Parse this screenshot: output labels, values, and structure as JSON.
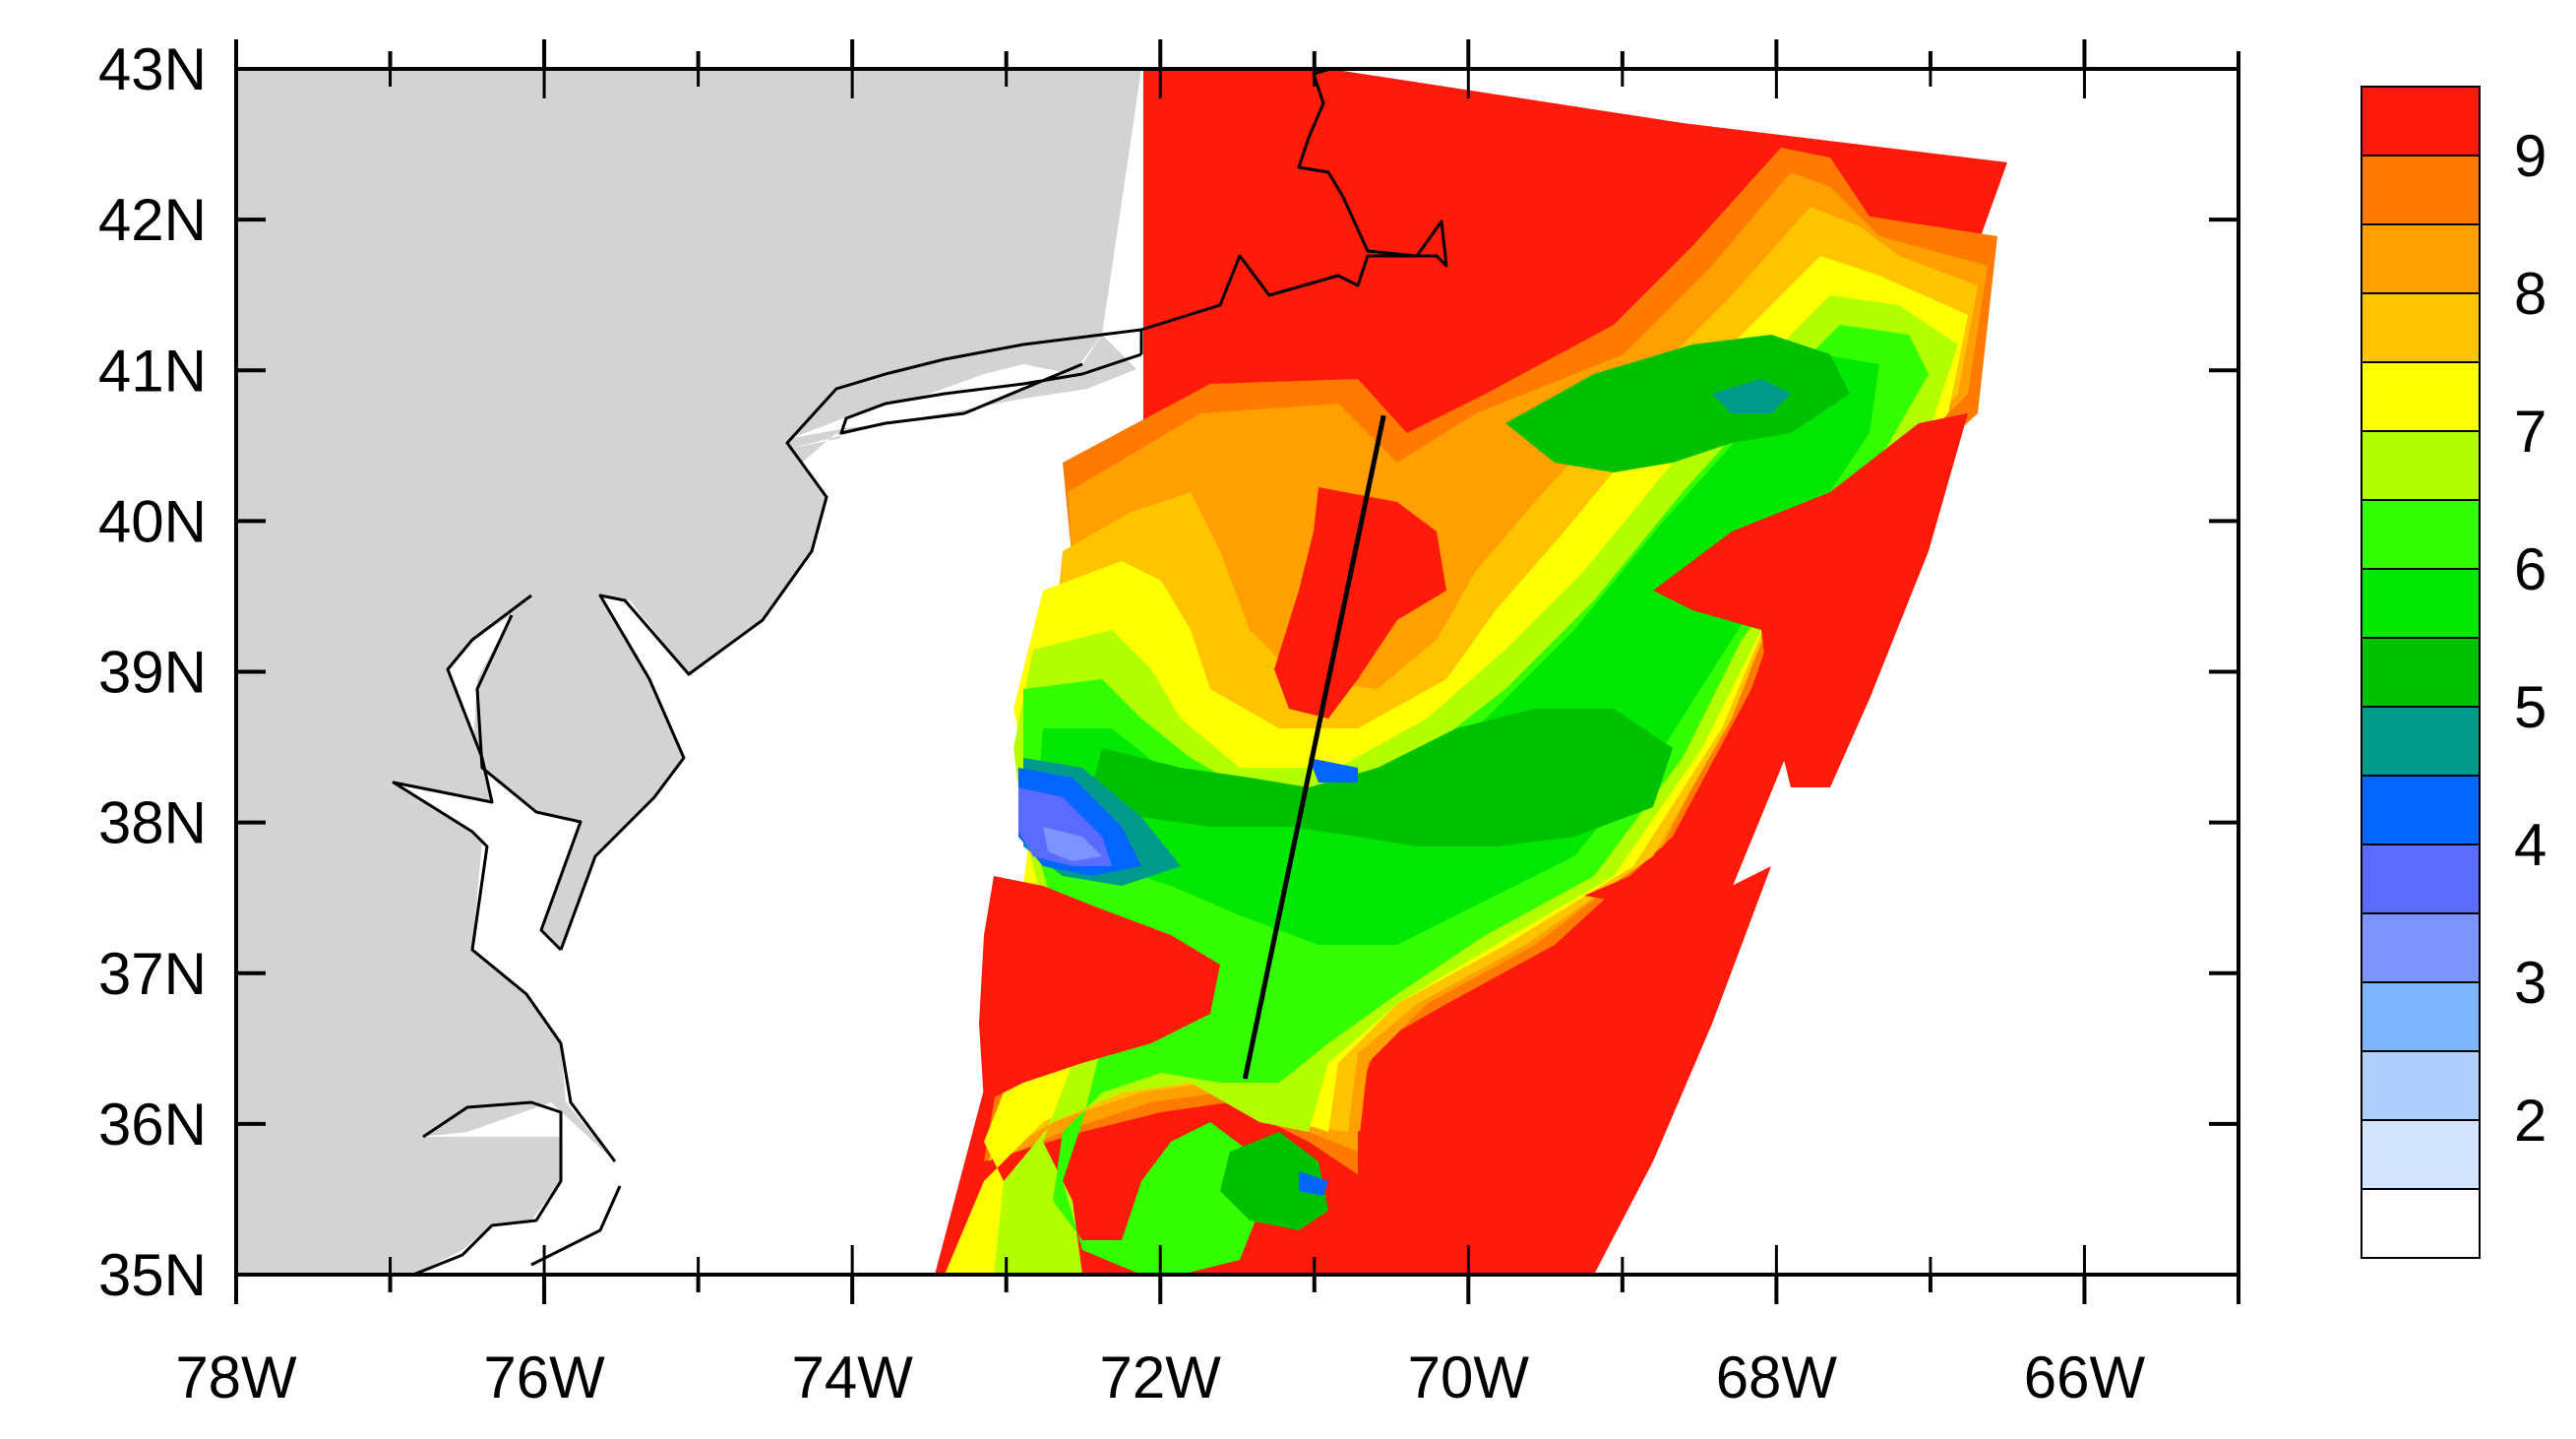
{
  "map": {
    "projection": "cylindrical-equidistant",
    "lon_range": [
      -78,
      -65
    ],
    "lat_range": [
      35,
      43
    ],
    "land_color": "#d3d3d3",
    "ocean_color": "#ffffff",
    "lat_labels": [
      "43N",
      "42N",
      "41N",
      "40N",
      "39N",
      "38N",
      "37N",
      "36N",
      "35N"
    ],
    "lon_labels": [
      "78W",
      "76W",
      "74W",
      "72W",
      "70W",
      "68W",
      "66W"
    ],
    "transect_line": {
      "start": [
        -71.45,
        36.3
      ],
      "end": [
        -70.55,
        40.7
      ],
      "color": "#000000"
    }
  },
  "colorbar": {
    "labels": [
      "9",
      "8",
      "7",
      "6",
      "5",
      "4",
      "3",
      "2"
    ],
    "colors": [
      "#ff1a0a",
      "#ff7a00",
      "#ffa000",
      "#ffc400",
      "#ffff00",
      "#b3ff00",
      "#33ff00",
      "#00e800",
      "#00c000",
      "#009a8c",
      "#0066ff",
      "#5a6cff",
      "#7c94ff",
      "#7db4ff",
      "#afcfff",
      "#d2e4ff",
      "#ffffff"
    ]
  },
  "legend_levels": [
    9,
    8,
    7,
    6,
    5,
    4,
    3,
    2
  ],
  "field_colors": {
    "red": "#ff1a0a",
    "orange_dark": "#ff7a00",
    "orange": "#ffa000",
    "gold": "#ffc400",
    "yellow": "#ffff00",
    "yellowgreen": "#b3ff00",
    "lightgreen": "#33ff00",
    "green": "#00e800",
    "darkgreen": "#00c000",
    "teal": "#009a8c",
    "blue": "#0066ff",
    "slateblue": "#5a6cff",
    "periwinkle": "#7c94ff"
  }
}
